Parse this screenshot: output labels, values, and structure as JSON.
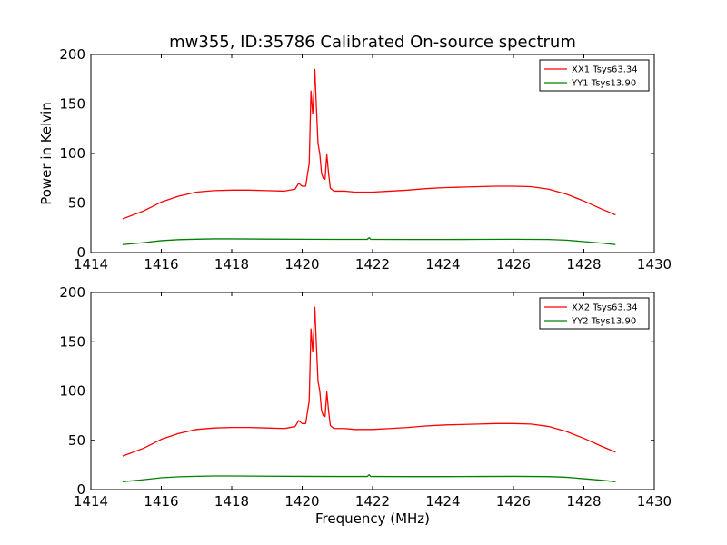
{
  "chart_data": [
    {
      "type": "line",
      "title": "mw355, ID:35786 Calibrated On-source spectrum",
      "xlabel": "",
      "ylabel": "Power in Kelvin",
      "xlim": [
        1414,
        1430
      ],
      "ylim": [
        0,
        200
      ],
      "xticks": [
        "1414",
        "1416",
        "1418",
        "1420",
        "1422",
        "1424",
        "1426",
        "1428",
        "1430"
      ],
      "yticks": [
        "0",
        "50",
        "100",
        "150",
        "200"
      ],
      "legend_position": "top-right",
      "series": [
        {
          "name": "XX1 Tsys63.34",
          "color": "#ff0000",
          "x": [
            1414.9,
            1415.5,
            1416.0,
            1416.5,
            1417.0,
            1417.5,
            1418.0,
            1418.5,
            1419.0,
            1419.5,
            1419.8,
            1419.9,
            1420.0,
            1420.1,
            1420.2,
            1420.25,
            1420.3,
            1420.33,
            1420.36,
            1420.4,
            1420.45,
            1420.5,
            1420.55,
            1420.6,
            1420.65,
            1420.7,
            1420.75,
            1420.8,
            1420.9,
            1421.0,
            1421.2,
            1421.5,
            1421.8,
            1422.0,
            1422.5,
            1423.0,
            1423.5,
            1424.0,
            1424.5,
            1425.0,
            1425.5,
            1426.0,
            1426.5,
            1427.0,
            1427.5,
            1428.0,
            1428.5,
            1428.9
          ],
          "values": [
            34,
            42,
            51,
            57,
            61,
            62.5,
            63,
            63,
            62.5,
            62,
            64,
            70,
            67,
            67,
            90,
            163,
            140,
            160,
            185,
            150,
            110,
            100,
            80,
            75,
            74,
            99,
            80,
            65,
            62,
            62,
            62,
            61,
            61,
            61,
            62,
            63,
            64.5,
            65.5,
            66,
            66.5,
            67,
            67,
            66.5,
            64,
            59,
            52,
            44,
            38
          ]
        },
        {
          "name": "YY1 Tsys13.90",
          "color": "#008000",
          "x": [
            1414.9,
            1415.5,
            1416.0,
            1416.5,
            1417.0,
            1417.5,
            1418.0,
            1419.0,
            1420.0,
            1421.0,
            1421.85,
            1421.9,
            1421.95,
            1422.0,
            1423.0,
            1424.0,
            1425.0,
            1426.0,
            1427.0,
            1427.5,
            1428.0,
            1428.5,
            1428.9
          ],
          "values": [
            8,
            10,
            12,
            13,
            13.5,
            13.8,
            13.8,
            13.6,
            13.4,
            13.3,
            13.3,
            15,
            13.3,
            13.3,
            13.2,
            13.2,
            13.3,
            13.4,
            13.2,
            12.5,
            11,
            9.5,
            8
          ]
        }
      ]
    },
    {
      "type": "line",
      "title": "",
      "xlabel": "Frequency (MHz)",
      "ylabel": "",
      "xlim": [
        1414,
        1430
      ],
      "ylim": [
        0,
        200
      ],
      "xticks": [
        "1414",
        "1416",
        "1418",
        "1420",
        "1422",
        "1424",
        "1426",
        "1428",
        "1430"
      ],
      "yticks": [
        "0",
        "50",
        "100",
        "150",
        "200"
      ],
      "legend_position": "top-right",
      "series": [
        {
          "name": "XX2 Tsys63.34",
          "color": "#ff0000",
          "x": [
            1414.9,
            1415.5,
            1416.0,
            1416.5,
            1417.0,
            1417.5,
            1418.0,
            1418.5,
            1419.0,
            1419.5,
            1419.8,
            1419.9,
            1420.0,
            1420.1,
            1420.2,
            1420.25,
            1420.3,
            1420.33,
            1420.36,
            1420.4,
            1420.45,
            1420.5,
            1420.55,
            1420.6,
            1420.65,
            1420.7,
            1420.75,
            1420.8,
            1420.9,
            1421.0,
            1421.2,
            1421.5,
            1421.8,
            1422.0,
            1422.5,
            1423.0,
            1423.5,
            1424.0,
            1424.5,
            1425.0,
            1425.5,
            1426.0,
            1426.5,
            1427.0,
            1427.5,
            1428.0,
            1428.5,
            1428.9
          ],
          "values": [
            34,
            42,
            51,
            57,
            61,
            62.5,
            63,
            63,
            62.5,
            62,
            64,
            70,
            67,
            67,
            90,
            163,
            140,
            160,
            185,
            150,
            110,
            100,
            80,
            75,
            74,
            99,
            80,
            65,
            62,
            62,
            62,
            61,
            61,
            61,
            62,
            63,
            64.5,
            65.5,
            66,
            66.5,
            67,
            67,
            66.5,
            64,
            59,
            52,
            44,
            38
          ]
        },
        {
          "name": "YY2 Tsys13.90",
          "color": "#008000",
          "x": [
            1414.9,
            1415.5,
            1416.0,
            1416.5,
            1417.0,
            1417.5,
            1418.0,
            1419.0,
            1420.0,
            1421.0,
            1421.85,
            1421.9,
            1421.95,
            1422.0,
            1423.0,
            1424.0,
            1425.0,
            1426.0,
            1427.0,
            1427.5,
            1428.0,
            1428.5,
            1428.9
          ],
          "values": [
            8,
            10,
            12,
            13,
            13.5,
            13.8,
            13.8,
            13.6,
            13.4,
            13.3,
            13.3,
            15,
            13.3,
            13.3,
            13.2,
            13.2,
            13.3,
            13.4,
            13.2,
            12.5,
            11,
            9.5,
            8
          ]
        }
      ]
    }
  ]
}
